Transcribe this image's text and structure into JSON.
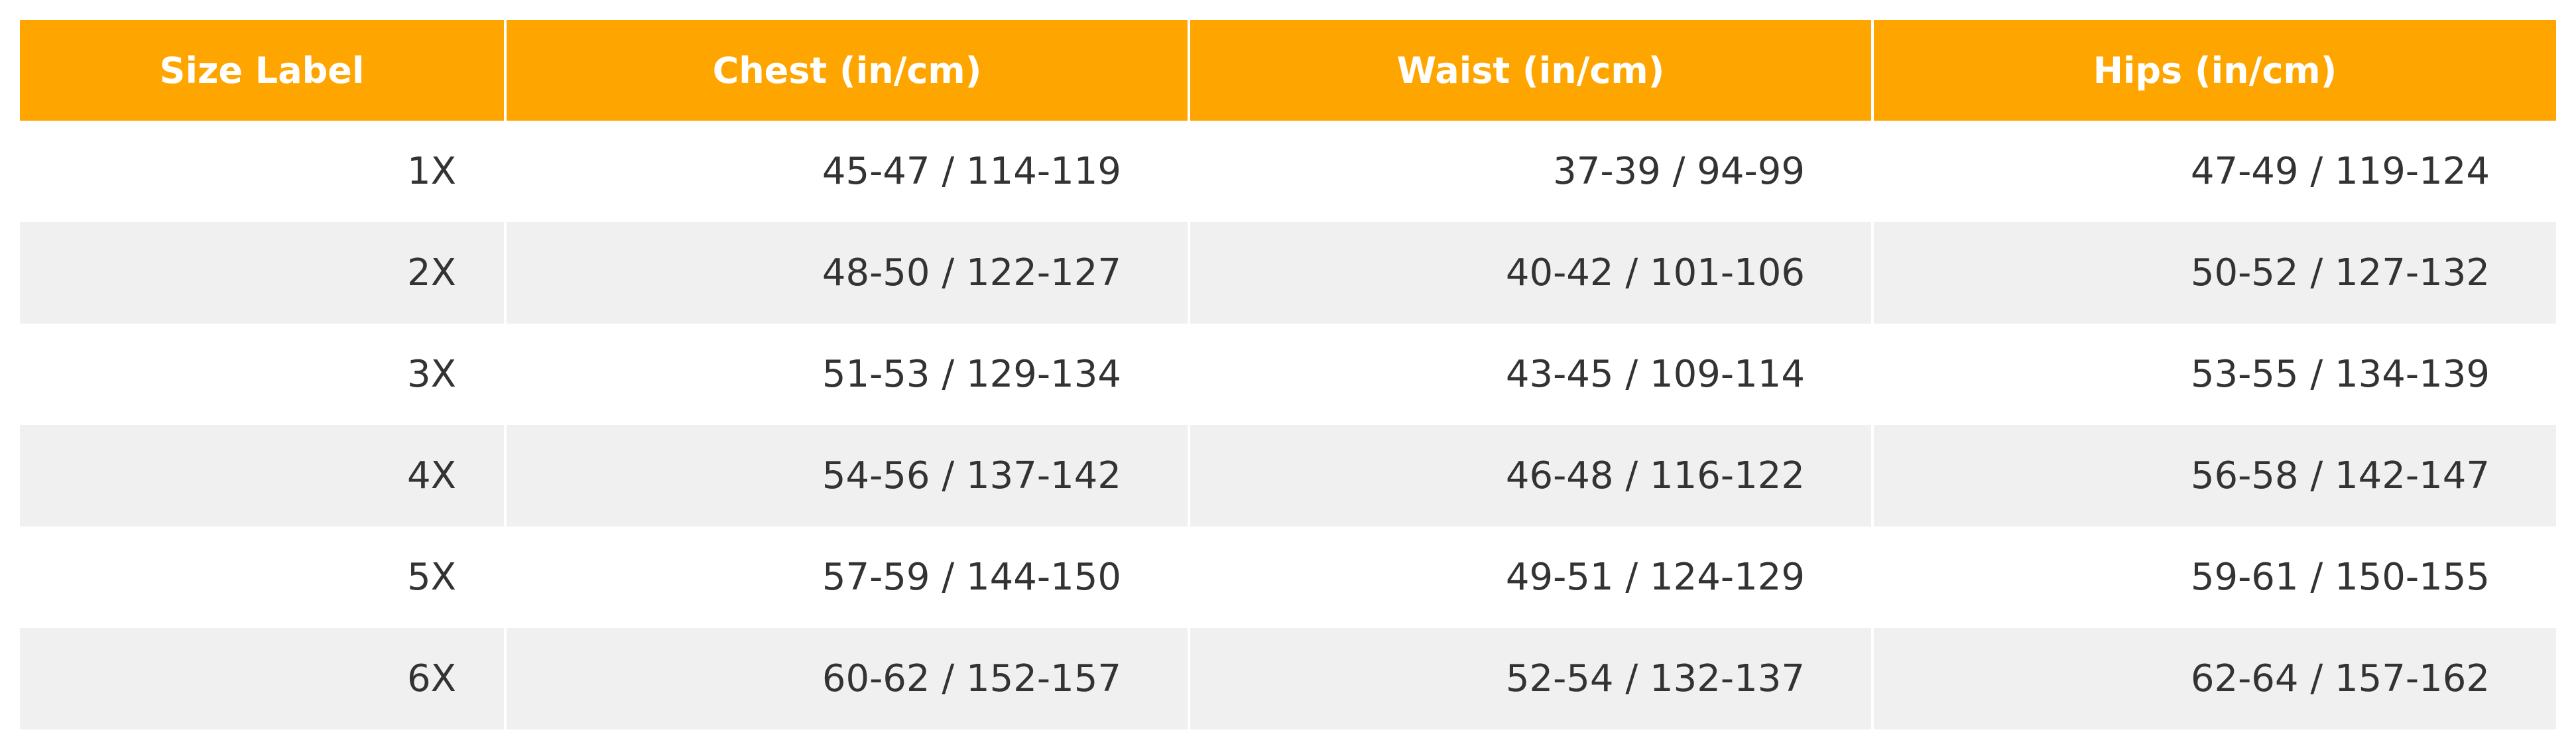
{
  "chart_data": {
    "type": "table",
    "columns": [
      "Size Label",
      "Chest (in/cm)",
      "Waist (in/cm)",
      "Hips (in/cm)"
    ],
    "rows": [
      [
        "1X",
        "45-47 / 114-119",
        "37-39 / 94-99",
        "47-49 / 119-124"
      ],
      [
        "2X",
        "48-50 / 122-127",
        "40-42 / 101-106",
        "50-52 / 127-132"
      ],
      [
        "3X",
        "51-53 / 129-134",
        "43-45 / 109-114",
        "53-55 / 134-139"
      ],
      [
        "4X",
        "54-56 / 137-142",
        "46-48 / 116-122",
        "56-58 / 142-147"
      ],
      [
        "5X",
        "57-59 / 144-150",
        "49-51 / 124-129",
        "59-61 / 150-155"
      ],
      [
        "6X",
        "60-62 / 152-157",
        "52-54 / 132-137",
        "62-64 / 157-162"
      ]
    ]
  },
  "colors": {
    "header_bg": "#ffa500",
    "header_text": "#ffffff",
    "row_odd_bg": "#ffffff",
    "row_even_bg": "#f0f0f0",
    "cell_text": "#333333"
  }
}
